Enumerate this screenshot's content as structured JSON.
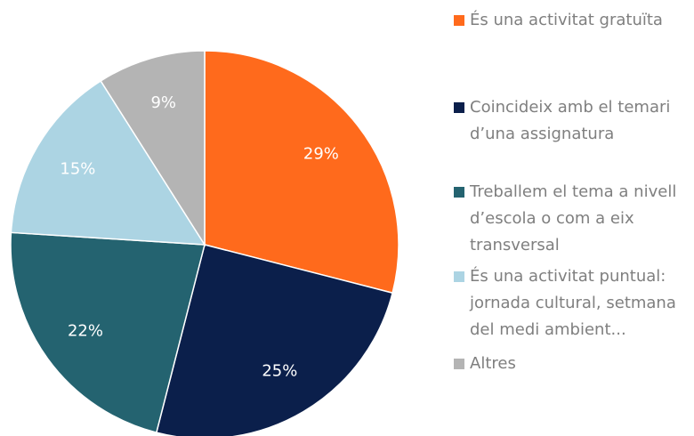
{
  "chart_data": {
    "type": "pie",
    "categories": [
      "És una activitat gratuïta",
      "Coincideix amb el temari d’una assignatura",
      "Treballem el tema a nivell d’escola o com a eix transversal",
      "És una activitat puntual: jornada cultural, setmana del medi ambient...",
      "Altres"
    ],
    "values": [
      29,
      25,
      22,
      15,
      9
    ],
    "value_labels": [
      "29%",
      "25%",
      "22%",
      "15%",
      "9%"
    ],
    "colors": [
      "#ff6a1c",
      "#0b1f4b",
      "#246370",
      "#acd4e3",
      "#b4b4b4"
    ],
    "legend": "right"
  }
}
